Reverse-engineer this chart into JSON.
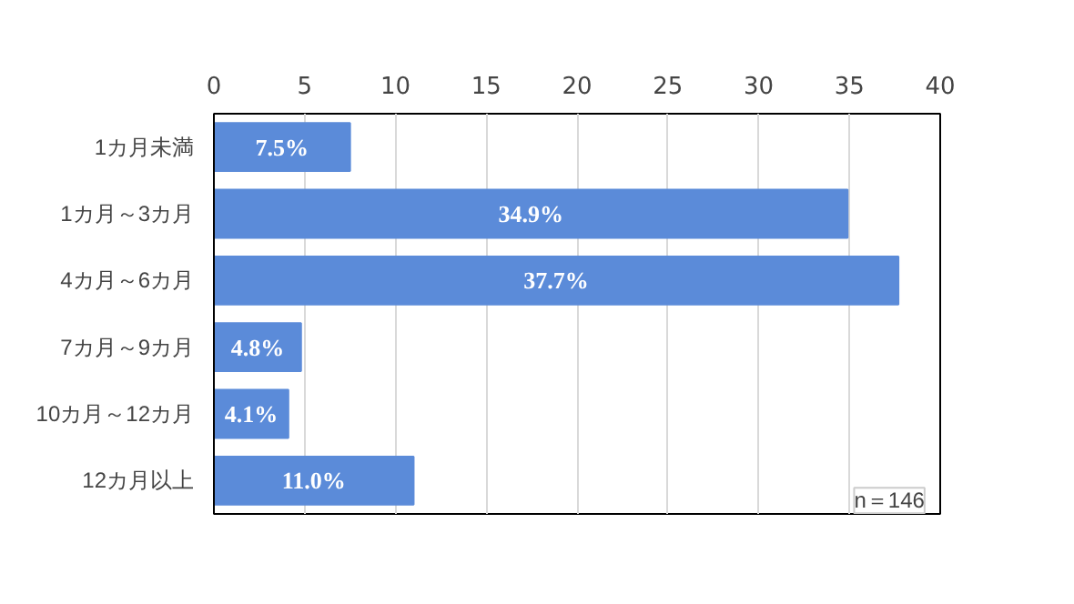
{
  "chart_data": {
    "type": "bar",
    "orientation": "horizontal",
    "categories": [
      "1カ月未満",
      "1カ月～3カ月",
      "4カ月～6カ月",
      "7カ月～9カ月",
      "10カ月～12カ月",
      "12カ月以上"
    ],
    "values": [
      7.5,
      34.9,
      37.7,
      4.8,
      4.1,
      11.0
    ],
    "value_labels": [
      "7.5%",
      "34.9%",
      "37.7%",
      "4.8%",
      "4.1%",
      "11.0%"
    ],
    "color": "#5b8bd9",
    "xlim": [
      0,
      40
    ],
    "xticks": [
      0,
      5,
      10,
      15,
      20,
      25,
      30,
      35,
      40
    ],
    "grid": "x",
    "annotations": [
      "n＝146"
    ]
  }
}
